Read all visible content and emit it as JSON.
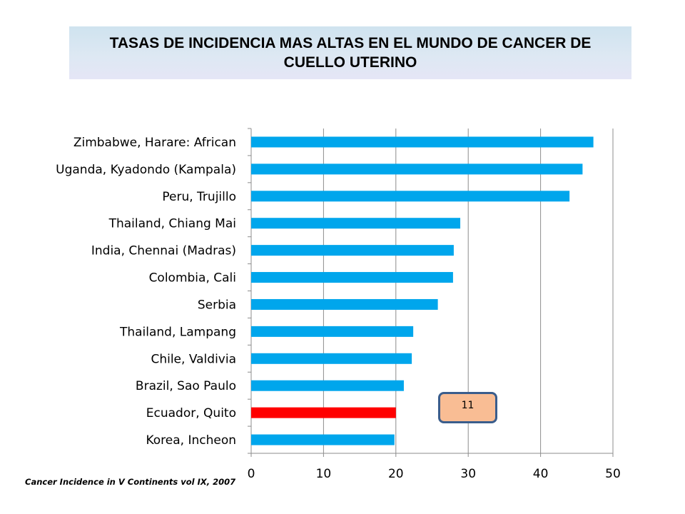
{
  "title": "TASAS DE INCIDENCIA MAS ALTAS EN EL MUNDO DE CANCER  DE CUELLO UTERINO",
  "source": "Cancer Incidence in V Continents vol IX, 2007",
  "callout": "11",
  "colors": {
    "bar": "#00a6ec",
    "highlight": "#ff0000",
    "callout_fill": "#f9bd94",
    "callout_border": "#3a5d8c"
  },
  "chart_data": {
    "type": "bar",
    "orientation": "horizontal",
    "categories": [
      "Zimbabwe, Harare: African",
      "Uganda, Kyadondo (Kampala)",
      "Peru, Trujillo",
      "Thailand, Chiang Mai",
      "India, Chennai (Madras)",
      "Colombia, Cali",
      "Serbia",
      "Thailand, Lampang",
      "Chile, Valdivia",
      "Brazil, Sao Paulo",
      "Ecuador, Quito",
      "Korea, Incheon"
    ],
    "values": [
      47.3,
      45.8,
      44.0,
      28.9,
      28.0,
      27.9,
      25.8,
      22.4,
      22.2,
      21.1,
      20.0,
      19.8
    ],
    "highlight_index": 10,
    "xlim": [
      0,
      50
    ],
    "xticks": [
      0,
      10,
      20,
      30,
      40,
      50
    ],
    "grid": "vertical",
    "legend": "none"
  }
}
